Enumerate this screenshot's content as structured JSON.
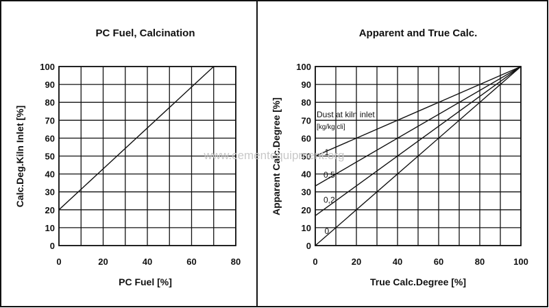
{
  "watermark": "www.cementequipment.org",
  "chart_data": [
    {
      "type": "line",
      "title": "PC Fuel, Calcination",
      "xlabel": "PC Fuel [%]",
      "ylabel": "Calc.Deg.Kiln Inlet [%]",
      "xlim": [
        0,
        80
      ],
      "ylim": [
        0,
        100
      ],
      "xticks": [
        0,
        20,
        40,
        60,
        80
      ],
      "yticks": [
        0,
        10,
        20,
        30,
        40,
        50,
        60,
        70,
        80,
        90,
        100
      ],
      "grid": true,
      "series": [
        {
          "x": [
            0,
            70
          ],
          "y": [
            20,
            100
          ]
        }
      ]
    },
    {
      "type": "line",
      "title": "Apparent and True Calc.",
      "xlabel": "True Calc.Degree [%]",
      "ylabel": "Apparent Calc.Degree [%]",
      "xlim": [
        0,
        100
      ],
      "ylim": [
        0,
        100
      ],
      "xticks": [
        0,
        20,
        40,
        60,
        80,
        100
      ],
      "yticks": [
        0,
        10,
        20,
        30,
        40,
        50,
        60,
        70,
        80,
        90,
        100
      ],
      "grid": true,
      "annotations": [
        "Dust at kiln inlet",
        "[kg/kg cli]"
      ],
      "series": [
        {
          "name": "1",
          "x": [
            0,
            100
          ],
          "y": [
            50,
            100
          ]
        },
        {
          "name": "0,5",
          "x": [
            0,
            100
          ],
          "y": [
            33.3,
            100
          ]
        },
        {
          "name": "0,2",
          "x": [
            0,
            100
          ],
          "y": [
            16.7,
            100
          ]
        },
        {
          "name": "0",
          "x": [
            0,
            100
          ],
          "y": [
            0,
            100
          ]
        }
      ]
    }
  ]
}
